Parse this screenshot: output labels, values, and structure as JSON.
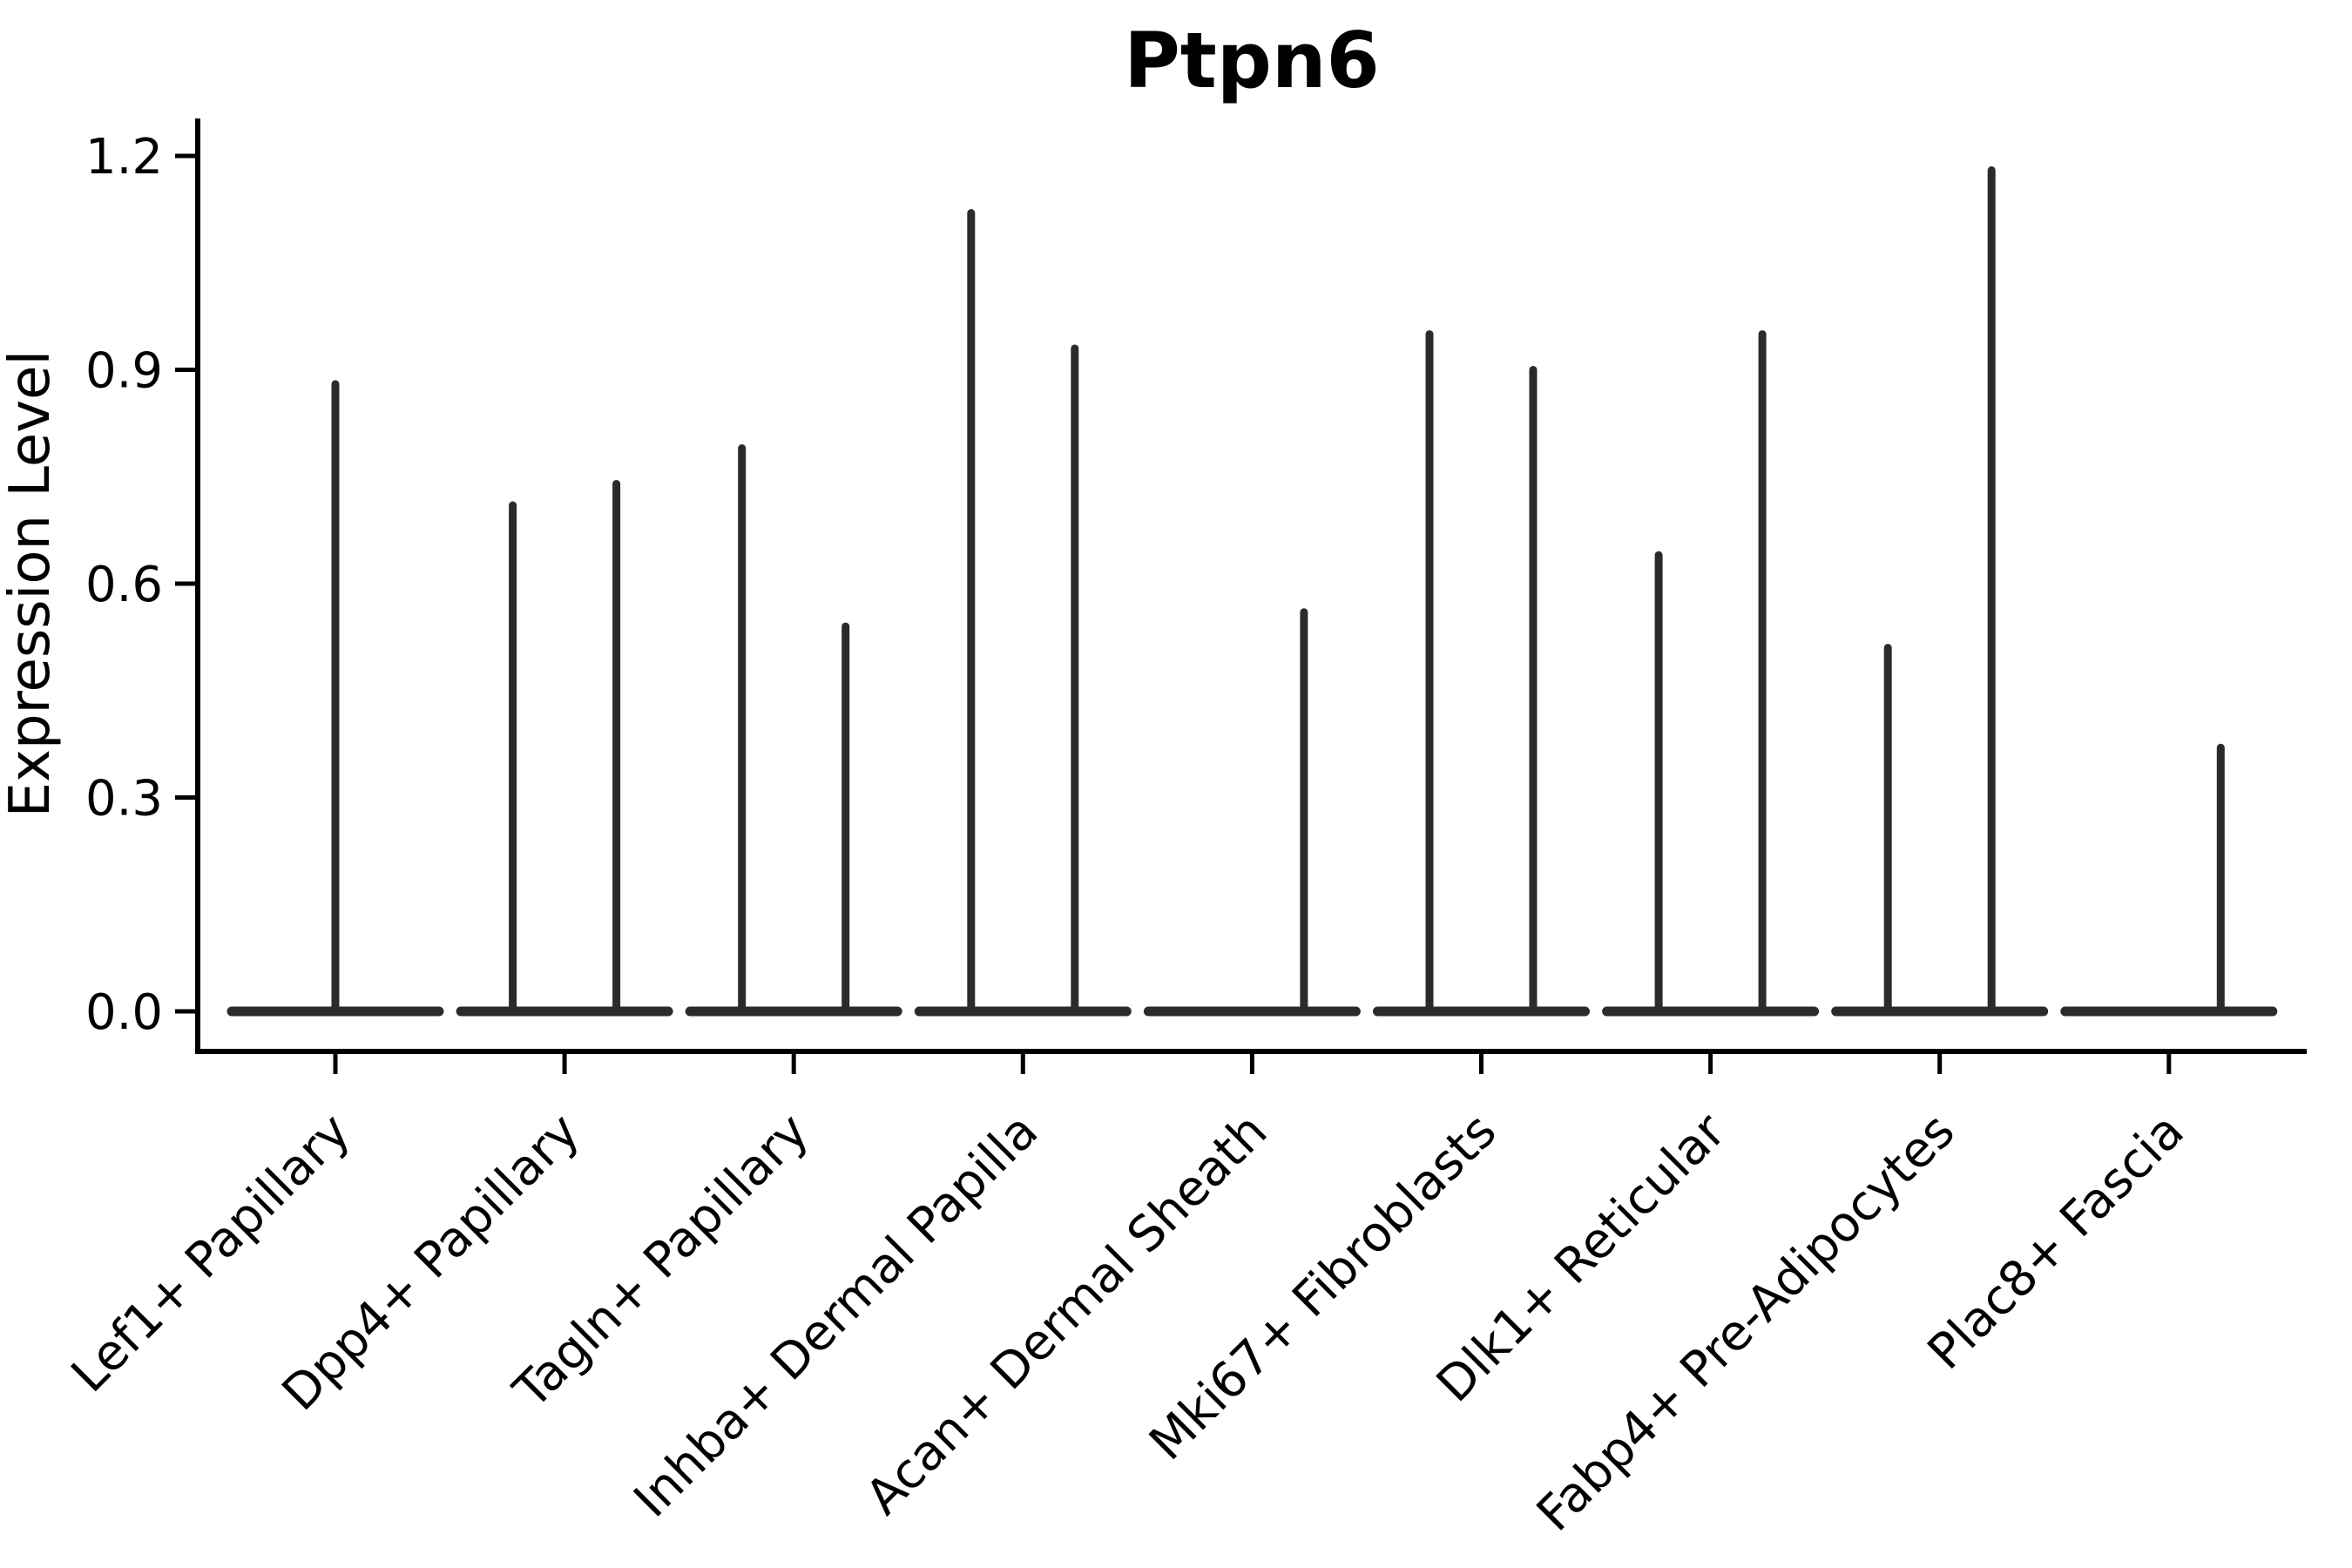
{
  "chart_data": {
    "type": "violin",
    "title": "Ptpn6",
    "ylabel": "Expression Level",
    "xlabel": "",
    "grid": false,
    "legend": "none",
    "yticks": [
      "0.0",
      "0.3",
      "0.6",
      "0.9",
      "1.2"
    ],
    "ylim": [
      -0.06,
      1.26
    ],
    "categories": [
      "Lef1+ Papillary",
      "Dpp4+ Papillary",
      "Tagln+ Papillary",
      "Inhba+ Dermal Papilla",
      "Acan+ Dermal Sheath",
      "Mki67+ Fibroblasts",
      "Dlk1+ Reticular",
      "Fabp4+ Pre-Adipocytes",
      "Plac8+ Fascia"
    ],
    "violins": [
      {
        "category": "Lef1+ Papillary",
        "baseline_value": 0.0,
        "spikes": [
          {
            "position": "center",
            "max": 0.88
          }
        ]
      },
      {
        "category": "Dpp4+ Papillary",
        "baseline_value": 0.0,
        "spikes": [
          {
            "position": "left",
            "max": 0.71
          },
          {
            "position": "right",
            "max": 0.74
          }
        ]
      },
      {
        "category": "Tagln+ Papillary",
        "baseline_value": 0.0,
        "spikes": [
          {
            "position": "left",
            "max": 0.79
          },
          {
            "position": "right",
            "max": 0.54
          }
        ]
      },
      {
        "category": "Inhba+ Dermal Papilla",
        "baseline_value": 0.0,
        "spikes": [
          {
            "position": "left",
            "max": 1.12
          },
          {
            "position": "right",
            "max": 0.93
          }
        ]
      },
      {
        "category": "Acan+ Dermal Sheath",
        "baseline_value": 0.0,
        "spikes": [
          {
            "position": "right",
            "max": 0.56
          }
        ]
      },
      {
        "category": "Mki67+ Fibroblasts",
        "baseline_value": 0.0,
        "spikes": [
          {
            "position": "left",
            "max": 0.95
          },
          {
            "position": "right",
            "max": 0.9
          }
        ]
      },
      {
        "category": "Dlk1+ Reticular",
        "baseline_value": 0.0,
        "spikes": [
          {
            "position": "left",
            "max": 0.64
          },
          {
            "position": "right",
            "max": 0.95
          }
        ]
      },
      {
        "category": "Fabp4+ Pre-Adipocytes",
        "baseline_value": 0.0,
        "spikes": [
          {
            "position": "left",
            "max": 0.51
          },
          {
            "position": "right",
            "max": 1.18
          }
        ]
      },
      {
        "category": "Plac8+ Fascia",
        "baseline_value": 0.0,
        "spikes": [
          {
            "position": "right",
            "max": 0.37
          }
        ]
      }
    ],
    "colors": {
      "background": "#ffffff",
      "violin_line": "#2b2b2b",
      "axis": "#000000",
      "text": "#000000"
    }
  }
}
